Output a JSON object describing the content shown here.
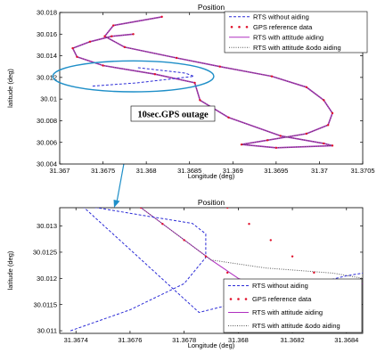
{
  "chart_data": [
    {
      "type": "line",
      "title": "Position",
      "xlabel": "Longitude (deg)",
      "ylabel": "latitude (deg)",
      "xlim": [
        31.367,
        31.3705
      ],
      "ylim": [
        30.004,
        30.018
      ],
      "xticks": [
        31.367,
        31.3675,
        31.368,
        31.3685,
        31.369,
        31.3695,
        31.37,
        31.3705
      ],
      "xtick_labels": [
        "31.367",
        "31.3675",
        "31.368",
        "31.3685",
        "31.369",
        "31.3695",
        "31.37",
        "31.3705"
      ],
      "yticks": [
        30.004,
        30.006,
        30.008,
        30.01,
        30.012,
        30.014,
        30.016,
        30.018
      ],
      "ytick_labels": [
        "30.004",
        "30.006",
        "30.008",
        "30.01",
        "30.012",
        "30.014",
        "30.016",
        "30.018"
      ],
      "grid": false,
      "legend_position": "top-right",
      "series": [
        {
          "name": "RTS without aiding",
          "color": "#2b2bd6",
          "style": "dashed",
          "x": [
            31.36738,
            31.3679,
            31.36855,
            31.36845,
            31.3679
          ],
          "y": [
            30.0112,
            30.0115,
            30.0121,
            30.0124,
            30.0129
          ]
        },
        {
          "name": "GPS  reference data",
          "color": "#e0102a",
          "style": "markers",
          "x": [
            31.36818,
            31.36762,
            31.36752,
            31.36775,
            31.36835,
            31.36885,
            31.36945,
            31.36985,
            31.37005,
            31.37015,
            31.3701,
            31.36985,
            31.3694,
            31.3691,
            31.3695,
            31.37015,
            31.37005,
            31.36955,
            31.36895,
            31.36862,
            31.36856,
            31.3681,
            31.3675,
            31.3672,
            31.36715,
            31.36735,
            31.3676,
            31.36785
          ],
          "y": [
            30.0176,
            30.0168,
            30.0158,
            30.0148,
            30.0138,
            30.013,
            30.0121,
            30.0111,
            30.0099,
            30.0087,
            30.0076,
            30.0068,
            30.0062,
            30.0058,
            30.0055,
            30.0057,
            30.0059,
            30.0066,
            30.0083,
            30.0099,
            30.0115,
            30.0123,
            30.0131,
            30.0139,
            30.0147,
            30.0153,
            30.0158,
            30.016
          ]
        },
        {
          "name": "RTS with attitude aiding",
          "color": "#b030c0",
          "style": "solid",
          "x": [
            31.36818,
            31.36762,
            31.36752,
            31.36775,
            31.36835,
            31.36885,
            31.36945,
            31.36985,
            31.37005,
            31.37015,
            31.3701,
            31.36985,
            31.3694,
            31.3691,
            31.3695,
            31.37015,
            31.37005,
            31.36955,
            31.36895,
            31.36862,
            31.36856,
            31.3681,
            31.3675,
            31.3672,
            31.36715,
            31.36735,
            31.3676,
            31.36785
          ],
          "y": [
            30.0176,
            30.0168,
            30.0158,
            30.0148,
            30.0138,
            30.013,
            30.0121,
            30.0111,
            30.0099,
            30.0087,
            30.0076,
            30.0068,
            30.0062,
            30.0058,
            30.0055,
            30.0057,
            30.0059,
            30.0066,
            30.0083,
            30.0099,
            30.0115,
            30.0123,
            30.0131,
            30.0139,
            30.0147,
            30.0153,
            30.0158,
            30.016
          ]
        },
        {
          "name": "RTS with attitude &odo aiding",
          "color": "#555555",
          "style": "dotted",
          "x": [
            31.36818,
            31.36762,
            31.36752,
            31.36775,
            31.36835,
            31.36885,
            31.36945,
            31.36985,
            31.37005,
            31.37015,
            31.3701,
            31.36985,
            31.3694,
            31.3691,
            31.3695,
            31.37015,
            31.37005,
            31.36955,
            31.36895,
            31.36862,
            31.36856,
            31.3681,
            31.3675,
            31.3672,
            31.36715,
            31.36735,
            31.3676,
            31.36785
          ],
          "y": [
            30.0176,
            30.0168,
            30.0158,
            30.0148,
            30.0138,
            30.013,
            30.0121,
            30.0111,
            30.0099,
            30.0087,
            30.0076,
            30.0068,
            30.0062,
            30.0058,
            30.0055,
            30.0057,
            30.0059,
            30.0066,
            30.0083,
            30.0099,
            30.0115,
            30.0123,
            30.0131,
            30.0139,
            30.0147,
            30.0153,
            30.0158,
            30.016
          ]
        }
      ],
      "annotation": {
        "text": "10sec.GPS  outage",
        "ellipse_center": [
          31.36785,
          30.0121
        ],
        "ellipse_radius": [
          0.00093,
          0.00143
        ],
        "ellipse_color": "#1f8fc8"
      }
    },
    {
      "type": "line",
      "title": "Position",
      "xlabel": "Longitude (deg)",
      "ylabel": "latitude (deg)",
      "xlim": [
        31.36734,
        31.36846
      ],
      "ylim": [
        30.01095,
        30.01335
      ],
      "xticks": [
        31.3674,
        31.3676,
        31.3678,
        31.368,
        31.3682,
        31.3684
      ],
      "xtick_labels": [
        "31.3674",
        "31.3676",
        "31.3678",
        "31.368",
        "31.3682",
        "31.3684"
      ],
      "yticks": [
        30.011,
        30.0115,
        30.012,
        30.0125,
        30.013
      ],
      "ytick_labels": [
        "30.011",
        "30.0115",
        "30.012",
        "30.0125",
        "30.013"
      ],
      "grid": false,
      "legend_position": "bottom-right",
      "series": [
        {
          "name": "RTS without aiding",
          "color": "#2b2bd6",
          "style": "dashed",
          "x": [
            31.36738,
            31.3676,
            31.3678,
            31.36788,
            31.36788,
            31.36783,
            31.36765,
            31.36742,
            31.367855,
            31.3684,
            31.36846
          ],
          "y": [
            30.011,
            30.0114,
            30.0119,
            30.0124,
            30.01285,
            30.01305,
            30.0132,
            30.0134,
            30.01135,
            30.01205,
            30.0121
          ]
        },
        {
          "name": "GPS reference data",
          "color": "#e0102a",
          "style": "markers",
          "x": [
            31.36764,
            31.36772,
            31.3678,
            31.36788,
            31.36796,
            31.36804,
            31.36812,
            31.3682,
            31.36828,
            31.36836,
            31.36844,
            31.36796,
            31.36804,
            31.36812,
            31.3682,
            31.36828,
            31.36836,
            31.36844
          ],
          "y": [
            30.01335,
            30.01304,
            30.01273,
            30.01242,
            30.01211,
            30.0118,
            30.01149,
            30.01118,
            30.01087,
            30.01056,
            30.01025,
            30.01335,
            30.01304,
            30.01273,
            30.01242,
            30.01211,
            30.0118,
            30.01149
          ]
        },
        {
          "name": "RTS with attitude aiding",
          "color": "#b030c0",
          "style": "solid",
          "x": [
            31.36764,
            31.3679,
            31.368,
            31.36812,
            31.36834,
            31.36846
          ],
          "y": [
            30.01335,
            30.01235,
            30.012,
            30.01175,
            30.0117,
            30.0119
          ]
        },
        {
          "name": "RTS with attitude &odo aiding",
          "color": "#555555",
          "style": "dotted",
          "x": [
            31.36764,
            31.3679,
            31.3681,
            31.36835,
            31.36846
          ],
          "y": [
            30.01335,
            30.01235,
            30.0122,
            30.0121,
            30.012
          ]
        }
      ]
    }
  ]
}
